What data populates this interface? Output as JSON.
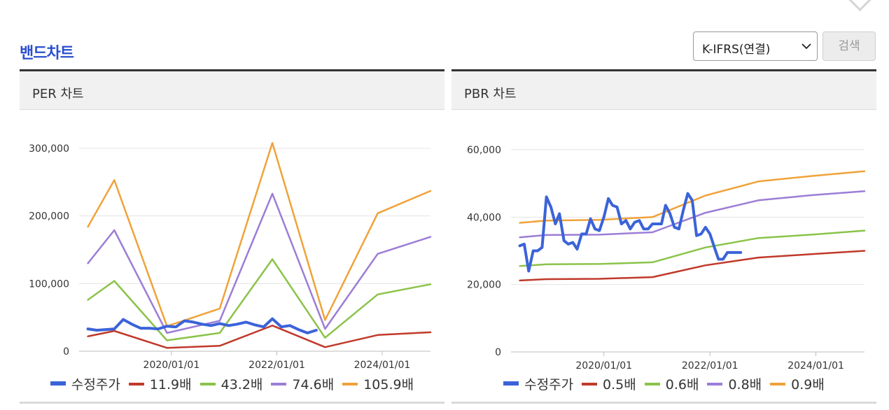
{
  "header": {
    "title": "밴드차트",
    "select_value": "K-IFRS(연결)",
    "search_label": "검색"
  },
  "chart_data": [
    {
      "type": "line",
      "panel_title": "PER 차트",
      "ylim": [
        0,
        300000
      ],
      "yticks": [
        0,
        100000,
        200000,
        300000
      ],
      "ytick_labels": [
        "0",
        "100,000",
        "200,000",
        "300,000"
      ],
      "xlim": [
        "2018/04/01",
        "2024/12/01"
      ],
      "xticks": [
        "2020/01/01",
        "2022/01/01",
        "2024/01/01"
      ],
      "series": [
        {
          "name": "11.9배",
          "color": "#c0392b",
          "x": [
            "2018/06/01",
            "2018/12/01",
            "2019/12/01",
            "2020/12/01",
            "2021/12/01",
            "2022/12/01",
            "2023/12/01",
            "2024/12/01"
          ],
          "values": [
            22000,
            30000,
            5000,
            8000,
            38000,
            6000,
            24000,
            28000
          ]
        },
        {
          "name": "43.2배",
          "color": "#8bc34a",
          "x": [
            "2018/06/01",
            "2018/12/01",
            "2019/12/01",
            "2020/12/01",
            "2021/12/01",
            "2022/12/01",
            "2023/12/01",
            "2024/12/01"
          ],
          "values": [
            76000,
            104000,
            16000,
            27000,
            136000,
            20000,
            84000,
            99000
          ]
        },
        {
          "name": "74.6배",
          "color": "#9c7dd6",
          "x": [
            "2018/06/01",
            "2018/12/01",
            "2019/12/01",
            "2020/12/01",
            "2021/12/01",
            "2022/12/01",
            "2023/12/01",
            "2024/12/01"
          ],
          "values": [
            130000,
            179000,
            27000,
            45000,
            233000,
            33000,
            144000,
            169000
          ]
        },
        {
          "name": "105.9배",
          "color": "#f0a23a",
          "x": [
            "2018/06/01",
            "2018/12/01",
            "2019/12/01",
            "2020/12/01",
            "2021/12/01",
            "2022/12/01",
            "2023/12/01",
            "2024/12/01"
          ],
          "values": [
            184000,
            253000,
            37000,
            63000,
            308000,
            46000,
            204000,
            237000
          ]
        },
        {
          "name": "수정주가",
          "color": "#3b63d9",
          "thick": true,
          "x": [
            "2018/06/01",
            "2018/08/01",
            "2018/10/01",
            "2018/12/01",
            "2019/02/01",
            "2019/04/01",
            "2019/06/01",
            "2019/08/01",
            "2019/10/01",
            "2019/12/01",
            "2020/02/01",
            "2020/04/01",
            "2020/06/01",
            "2020/08/01",
            "2020/10/01",
            "2020/12/01",
            "2021/02/01",
            "2021/04/01",
            "2021/06/01",
            "2021/08/01",
            "2021/10/01",
            "2021/12/01",
            "2022/02/01",
            "2022/04/01",
            "2022/06/01",
            "2022/08/01",
            "2022/10/01"
          ],
          "values": [
            33000,
            31000,
            32000,
            33000,
            47000,
            40000,
            34000,
            34000,
            33000,
            37000,
            36000,
            45000,
            43000,
            40000,
            38000,
            41000,
            38000,
            40000,
            43000,
            39000,
            36000,
            48000,
            36000,
            38000,
            32000,
            27000,
            31000
          ]
        }
      ]
    },
    {
      "type": "line",
      "panel_title": "PBR 차트",
      "ylim": [
        0,
        60000
      ],
      "yticks": [
        0,
        20000,
        40000,
        60000
      ],
      "ytick_labels": [
        "0",
        "20,000",
        "40,000",
        "60,000"
      ],
      "xlim": [
        "2018/04/01",
        "2024/12/01"
      ],
      "xticks": [
        "2020/01/01",
        "2022/01/01",
        "2024/01/01"
      ],
      "series": [
        {
          "name": "0.5배",
          "color": "#c0392b",
          "x": [
            "2018/06/01",
            "2018/12/01",
            "2019/12/01",
            "2020/12/01",
            "2021/12/01",
            "2022/12/01",
            "2023/12/01",
            "2024/12/01"
          ],
          "values": [
            21200,
            21600,
            21700,
            22200,
            25700,
            28000,
            29000,
            30000
          ]
        },
        {
          "name": "0.6배",
          "color": "#8bc34a",
          "x": [
            "2018/06/01",
            "2018/12/01",
            "2019/12/01",
            "2020/12/01",
            "2021/12/01",
            "2022/12/01",
            "2023/12/01",
            "2024/12/01"
          ],
          "values": [
            25500,
            26000,
            26100,
            26600,
            31000,
            33800,
            34800,
            36000
          ]
        },
        {
          "name": "0.8배",
          "color": "#9c7dd6",
          "x": [
            "2018/06/01",
            "2018/12/01",
            "2019/12/01",
            "2020/12/01",
            "2021/12/01",
            "2022/12/01",
            "2023/12/01",
            "2024/12/01"
          ],
          "values": [
            34000,
            34700,
            34800,
            35500,
            41300,
            45000,
            46500,
            47700
          ]
        },
        {
          "name": "0.9배",
          "color": "#f0a23a",
          "x": [
            "2018/06/01",
            "2018/12/01",
            "2019/12/01",
            "2020/12/01",
            "2021/12/01",
            "2022/12/01",
            "2023/12/01",
            "2024/12/01"
          ],
          "values": [
            38300,
            39000,
            39200,
            40000,
            46400,
            50600,
            52200,
            53600
          ]
        },
        {
          "name": "수정주가",
          "color": "#3b63d9",
          "thick": true,
          "x": [
            "2018/06/01",
            "2018/07/01",
            "2018/08/01",
            "2018/09/01",
            "2018/10/01",
            "2018/11/01",
            "2018/12/01",
            "2019/01/01",
            "2019/02/01",
            "2019/03/01",
            "2019/04/01",
            "2019/05/01",
            "2019/06/01",
            "2019/07/01",
            "2019/08/01",
            "2019/09/01",
            "2019/10/01",
            "2019/11/01",
            "2019/12/01",
            "2020/01/01",
            "2020/02/01",
            "2020/03/01",
            "2020/04/01",
            "2020/05/01",
            "2020/06/01",
            "2020/07/01",
            "2020/08/01",
            "2020/09/01",
            "2020/10/01",
            "2020/11/01",
            "2020/12/01",
            "2021/01/01",
            "2021/02/01",
            "2021/03/01",
            "2021/04/01",
            "2021/05/01",
            "2021/06/01",
            "2021/07/01",
            "2021/08/01",
            "2021/09/01",
            "2021/10/01",
            "2021/11/01",
            "2021/12/01",
            "2022/01/01",
            "2022/02/01",
            "2022/03/01",
            "2022/04/01",
            "2022/05/01",
            "2022/06/01",
            "2022/07/01",
            "2022/08/01"
          ],
          "values": [
            31500,
            32000,
            24000,
            30000,
            30000,
            31000,
            46000,
            43000,
            38000,
            41000,
            33000,
            32000,
            32500,
            30500,
            35000,
            35000,
            39500,
            36500,
            36000,
            40000,
            45500,
            43500,
            43000,
            38000,
            39000,
            36500,
            38500,
            39000,
            36500,
            36500,
            38000,
            38000,
            38000,
            43500,
            41000,
            37000,
            36500,
            42000,
            47000,
            45000,
            34500,
            35000,
            37000,
            35000,
            31000,
            27500,
            27500,
            29500,
            29500,
            29500,
            29500
          ]
        }
      ]
    }
  ]
}
